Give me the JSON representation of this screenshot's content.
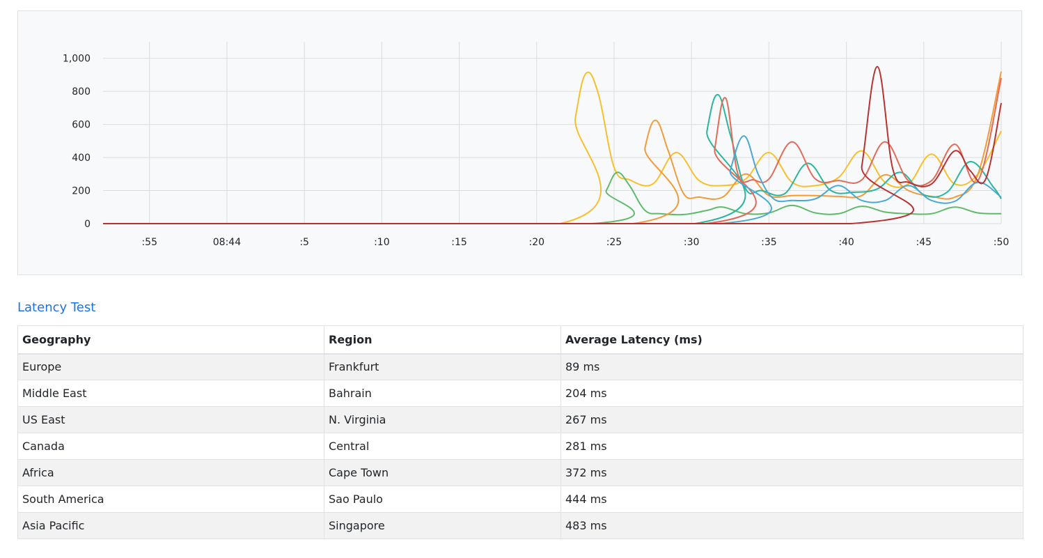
{
  "chart_data": {
    "type": "line",
    "x_ticks": [
      ":55",
      "08:44",
      ":5",
      ":10",
      ":15",
      ":20",
      ":25",
      ":30",
      ":35",
      ":40",
      ":45",
      ":50"
    ],
    "y_ticks": [
      "0",
      "200",
      "400",
      "600",
      "800",
      "1,000"
    ],
    "ylim": [
      0,
      1100
    ],
    "xlim": [
      -3,
      55
    ],
    "grid": true,
    "series": [
      {
        "color": "#f7c02b",
        "x": [
          -3,
          26.5,
          27.5,
          28.2,
          29,
          30,
          31,
          32.5,
          34,
          35.5,
          37,
          38.5,
          40,
          41.5,
          43,
          44.5,
          46,
          47.5,
          49,
          50.5,
          52,
          53.5,
          55
        ],
        "y": [
          0,
          0,
          640,
          910,
          780,
          340,
          265,
          240,
          430,
          260,
          230,
          270,
          430,
          250,
          230,
          280,
          440,
          250,
          240,
          420,
          240,
          300,
          560
        ]
      },
      {
        "color": "#5fba6a",
        "x": [
          -3,
          28.5,
          29.5,
          30.2,
          31,
          32,
          33,
          34.5,
          36,
          37,
          38.5,
          40,
          41.5,
          43,
          44.5,
          46,
          47.5,
          49,
          50.5,
          52,
          53.5,
          55
        ],
        "y": [
          0,
          0,
          200,
          310,
          230,
          80,
          60,
          55,
          80,
          100,
          60,
          65,
          110,
          65,
          60,
          105,
          70,
          60,
          60,
          100,
          65,
          60
        ]
      },
      {
        "color": "#f29b38",
        "x": [
          -3,
          31.2,
          32,
          32.7,
          33.5,
          34.5,
          35.5,
          37,
          38.5,
          40,
          41.5,
          43,
          44.5,
          46,
          47.5,
          49,
          50.5,
          52,
          53.5,
          55
        ],
        "y": [
          0,
          0,
          460,
          625,
          440,
          180,
          160,
          160,
          300,
          170,
          170,
          170,
          165,
          170,
          295,
          200,
          165,
          160,
          300,
          920
        ]
      },
      {
        "color": "#2bb59e",
        "x": [
          -3,
          35.2,
          36,
          36.7,
          37.5,
          38.5,
          39.5,
          41,
          42.5,
          44,
          45.5,
          47,
          48.5,
          50,
          51.5,
          53,
          54.5,
          55
        ],
        "y": [
          0,
          0,
          560,
          780,
          540,
          210,
          200,
          180,
          365,
          200,
          190,
          210,
          310,
          175,
          190,
          375,
          220,
          150
        ]
      },
      {
        "color": "#e26a59",
        "x": [
          -3,
          35.9,
          36.5,
          37.2,
          38,
          39,
          40,
          41.5,
          43,
          44.5,
          46,
          47.5,
          49,
          50.5,
          52,
          53.5,
          55
        ],
        "y": [
          0,
          0,
          450,
          760,
          300,
          265,
          270,
          495,
          270,
          260,
          265,
          495,
          260,
          260,
          480,
          260,
          880
        ]
      },
      {
        "color": "#4aa8d2",
        "x": [
          -3,
          36.8,
          37.5,
          38.4,
          39.3,
          40.3,
          41.5,
          43,
          44.5,
          46,
          47.5,
          49,
          50.5,
          52,
          53.5,
          55
        ],
        "y": [
          0,
          0,
          320,
          530,
          300,
          150,
          140,
          150,
          230,
          140,
          140,
          230,
          140,
          135,
          250,
          160
        ]
      },
      {
        "color": "#b93232",
        "x": [
          -3,
          45.3,
          46,
          47,
          48,
          49,
          50.5,
          52,
          53,
          54,
          55
        ],
        "y": [
          0,
          0,
          350,
          950,
          330,
          250,
          240,
          440,
          320,
          270,
          730
        ]
      }
    ]
  },
  "section_title": "Latency Test",
  "table": {
    "headers": [
      "Geography",
      "Region",
      "Average Latency (ms)"
    ],
    "rows": [
      [
        "Europe",
        "Frankfurt",
        "89 ms"
      ],
      [
        "Middle East",
        "Bahrain",
        "204 ms"
      ],
      [
        "US East",
        "N. Virginia",
        "267 ms"
      ],
      [
        "Canada",
        "Central",
        "281 ms"
      ],
      [
        "Africa",
        "Cape Town",
        "372 ms"
      ],
      [
        "South America",
        "Sao Paulo",
        "444 ms"
      ],
      [
        "Asia Pacific",
        "Singapore",
        "483 ms"
      ]
    ]
  }
}
